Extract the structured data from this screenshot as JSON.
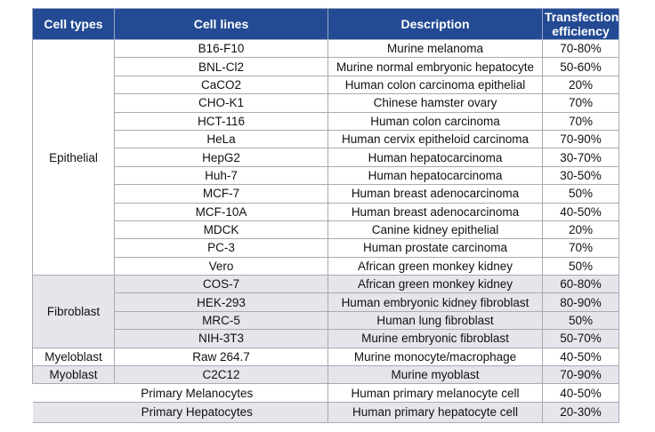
{
  "headers": [
    "Cell types",
    "Cell lines",
    "Description",
    "Transfection efficiency"
  ],
  "groups": [
    {
      "type": "Epithelial",
      "shade": "a",
      "rows": [
        {
          "line": "B16-F10",
          "desc": "Murine melanoma",
          "eff": "70-80%"
        },
        {
          "line": "BNL-Cl2",
          "desc": "Murine normal embryonic hepatocyte",
          "eff": "50-60%"
        },
        {
          "line": "CaCO2",
          "desc": "Human colon carcinoma epithelial",
          "eff": "20%"
        },
        {
          "line": "CHO-K1",
          "desc": "Chinese hamster ovary",
          "eff": "70%"
        },
        {
          "line": "HCT-116",
          "desc": "Human colon carcinoma",
          "eff": "70%"
        },
        {
          "line": "HeLa",
          "desc": "Human cervix epitheloid carcinoma",
          "eff": "70-90%"
        },
        {
          "line": "HepG2",
          "desc": "Human hepatocarcinoma",
          "eff": "30-70%"
        },
        {
          "line": "Huh-7",
          "desc": "Human hepatocarcinoma",
          "eff": "30-50%"
        },
        {
          "line": "MCF-7",
          "desc": "Human breast adenocarcinoma",
          "eff": "50%"
        },
        {
          "line": "MCF-10A",
          "desc": "Human breast adenocarcinoma",
          "eff": "40-50%"
        },
        {
          "line": "MDCK",
          "desc": "Canine kidney epithelial",
          "eff": "20%"
        },
        {
          "line": "PC-3",
          "desc": "Human prostate carcinoma",
          "eff": "70%"
        },
        {
          "line": "Vero",
          "desc": "African green monkey kidney",
          "eff": "50%"
        }
      ]
    },
    {
      "type": "Fibroblast",
      "shade": "b",
      "rows": [
        {
          "line": "COS-7",
          "desc": "African green monkey kidney",
          "eff": "60-80%"
        },
        {
          "line": "HEK-293",
          "desc": "Human embryonic kidney fibroblast",
          "eff": "80-90%"
        },
        {
          "line": "MRC-5",
          "desc": "Human lung fibroblast",
          "eff": "50%"
        },
        {
          "line": "NIH-3T3",
          "desc": "Murine embryonic fibroblast",
          "eff": "50-70%"
        }
      ]
    },
    {
      "type": "Myeloblast",
      "shade": "a",
      "rows": [
        {
          "line": "Raw 264.7",
          "desc": "Murine monocyte/macrophage",
          "eff": "40-50%"
        }
      ]
    },
    {
      "type": "Myoblast",
      "shade": "b",
      "rows": [
        {
          "line": "C2C12",
          "desc": "Murine myoblast",
          "eff": "70-90%"
        }
      ]
    },
    {
      "type": "",
      "shade": "a",
      "rows": [
        {
          "line": "Primary Melanocytes",
          "desc": "Human primary melanocyte cell",
          "eff": "40-50%"
        }
      ]
    },
    {
      "type": "",
      "shade": "b",
      "rows": [
        {
          "line": "Primary Hepatocytes",
          "desc": "Human primary hepatocyte cell",
          "eff": "20-30%"
        }
      ]
    }
  ]
}
